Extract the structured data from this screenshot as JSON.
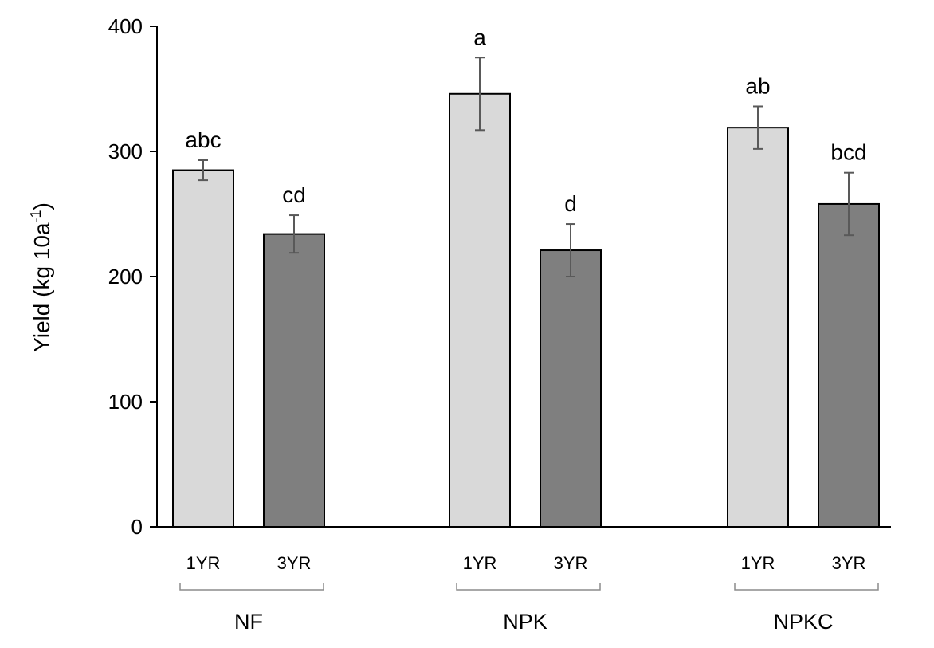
{
  "chart_data": {
    "type": "bar",
    "ylabel": "Yield (kg 10a",
    "ylabel_superscript": "-1",
    "ylabel_close": ")",
    "ylim": [
      0,
      400
    ],
    "yticks": [
      0,
      100,
      200,
      300,
      400
    ],
    "grid": false,
    "groups": [
      {
        "name": "NF",
        "bars": [
          {
            "label": "1YR",
            "value": 285,
            "error": 8,
            "letter": "abc",
            "color": "#d9d9d9"
          },
          {
            "label": "3YR",
            "value": 234,
            "error": 15,
            "letter": "cd",
            "color": "#7f7f7f"
          }
        ]
      },
      {
        "name": "NPK",
        "bars": [
          {
            "label": "1YR",
            "value": 346,
            "error": 29,
            "letter": "a",
            "color": "#d9d9d9"
          },
          {
            "label": "3YR",
            "value": 221,
            "error": 21,
            "letter": "d",
            "color": "#7f7f7f"
          }
        ]
      },
      {
        "name": "NPKC",
        "bars": [
          {
            "label": "1YR",
            "value": 319,
            "error": 17,
            "letter": "ab",
            "color": "#d9d9d9"
          },
          {
            "label": "3YR",
            "value": 258,
            "error": 25,
            "letter": "bcd",
            "color": "#7f7f7f"
          }
        ]
      }
    ]
  }
}
